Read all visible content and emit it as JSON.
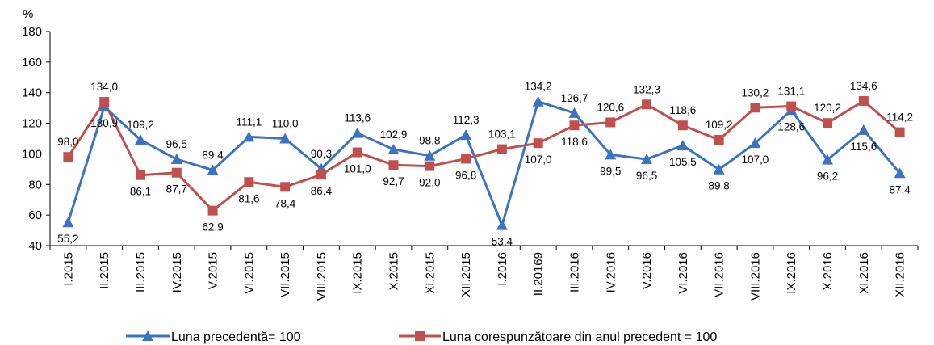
{
  "chart_data": {
    "type": "line",
    "y_unit": "%",
    "ylim": [
      40,
      180
    ],
    "yticks": [
      40,
      60,
      80,
      100,
      120,
      140,
      160,
      180
    ],
    "grid": false,
    "legend_position": "bottom",
    "categories": [
      "I.2015",
      "II.2015",
      "III.2015",
      "IV.2015",
      "V.2015",
      "VI.2015",
      "VII.2015",
      "VIII.2015",
      "IX.2015",
      "X.2015",
      "XI.2015",
      "XII.2015",
      "I.2016",
      "II.20169",
      "III.2016",
      "IV.2016",
      "V.2016",
      "VI.2016",
      "VII.2016",
      "VIII.2016",
      "IX.2016",
      "X.2016",
      "XI.2016",
      "XII.2016"
    ],
    "series": [
      {
        "name": "Luna precedentă= 100",
        "color": "#3A73C1",
        "marker": "triangle",
        "values": [
          55.2,
          130.9,
          109.2,
          96.5,
          89.4,
          111.1,
          110.0,
          90.3,
          113.6,
          102.9,
          98.8,
          112.3,
          53.4,
          134.2,
          126.7,
          99.5,
          96.5,
          105.5,
          89.8,
          107.0,
          128.6,
          96.2,
          115.6,
          87.4
        ],
        "labels": [
          "55,2",
          "130,9",
          "109,2",
          "96,5",
          "89,4",
          "111,1",
          "110,0",
          "90,3",
          "113,6",
          "102,9",
          "98,8",
          "112,3",
          "53,4",
          "134,2",
          "126,7",
          "99,5",
          "96,5",
          "105,5",
          "89,8",
          "107,0",
          "128,6",
          "96,2",
          "115,6",
          "87,4"
        ]
      },
      {
        "name": "Luna corespunzătoare din anul precedent = 100",
        "color": "#C0504D",
        "marker": "square",
        "values": [
          98.0,
          134.0,
          86.1,
          87.7,
          62.9,
          81.6,
          78.4,
          86.4,
          101.0,
          92.7,
          92.0,
          96.8,
          103.1,
          107.0,
          118.6,
          120.6,
          132.3,
          118.6,
          109.2,
          130.2,
          131.1,
          120.2,
          134.6,
          114.2
        ],
        "labels": [
          "98,0",
          "134,0",
          "86,1",
          "87,7",
          "62,9",
          "81,6",
          "78,4",
          "86,4",
          "101,0",
          "92,7",
          "92,0",
          "96,8",
          "103,1",
          "107,0",
          "118,6",
          "120,6",
          "132,3",
          "118,6",
          "109,2",
          "130,2",
          "131,1",
          "120,2",
          "134,6",
          "114,2"
        ]
      }
    ]
  }
}
